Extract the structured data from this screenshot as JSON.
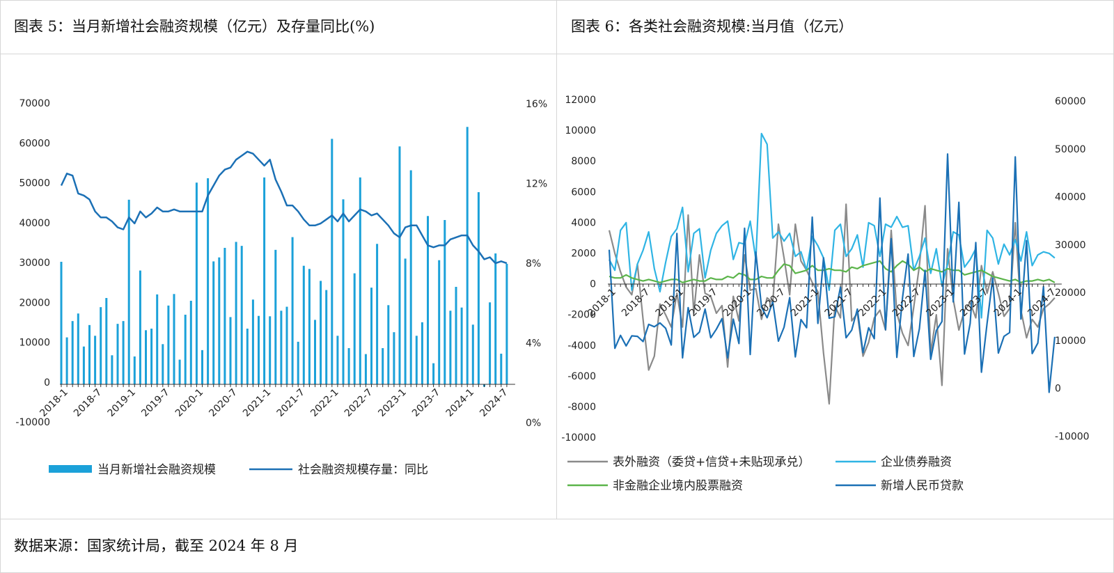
{
  "left_panel": {
    "title": "图表 5：当月新增社会融资规模（亿元）及存量同比(%)"
  },
  "right_panel": {
    "title": "图表 6：各类社会融资规模:当月值（亿元）"
  },
  "footer": {
    "source": "数据来源：国家统计局，截至 2024 年 8 月"
  },
  "chart_data": [
    {
      "type": "bar+line",
      "title": "当月新增社会融资规模（亿元）及存量同比(%)",
      "categories": [
        "2018-1",
        "2018-2",
        "2018-3",
        "2018-4",
        "2018-5",
        "2018-6",
        "2018-7",
        "2018-8",
        "2018-9",
        "2018-10",
        "2018-11",
        "2018-12",
        "2019-1",
        "2019-2",
        "2019-3",
        "2019-4",
        "2019-5",
        "2019-6",
        "2019-7",
        "2019-8",
        "2019-9",
        "2019-10",
        "2019-11",
        "2019-12",
        "2020-1",
        "2020-2",
        "2020-3",
        "2020-4",
        "2020-5",
        "2020-6",
        "2020-7",
        "2020-8",
        "2020-9",
        "2020-10",
        "2020-11",
        "2020-12",
        "2021-1",
        "2021-2",
        "2021-3",
        "2021-4",
        "2021-5",
        "2021-6",
        "2021-7",
        "2021-8",
        "2021-9",
        "2021-10",
        "2021-11",
        "2021-12",
        "2022-1",
        "2022-2",
        "2022-3",
        "2022-4",
        "2022-5",
        "2022-6",
        "2022-7",
        "2022-8",
        "2022-9",
        "2022-10",
        "2022-11",
        "2022-12",
        "2023-1",
        "2023-2",
        "2023-3",
        "2023-4",
        "2023-5",
        "2023-6",
        "2023-7",
        "2023-8",
        "2023-9",
        "2023-10",
        "2023-11",
        "2023-12",
        "2024-1",
        "2024-2",
        "2024-3",
        "2024-4",
        "2024-5",
        "2024-6",
        "2024-7",
        "2024-8"
      ],
      "tick_labels": [
        "2018-1",
        "2018-7",
        "2019-1",
        "2019-7",
        "2020-1",
        "2020-7",
        "2021-1",
        "2021-7",
        "2022-1",
        "2022-7",
        "2023-1",
        "2023-7",
        "2024-1",
        "2024-7"
      ],
      "y_left": {
        "ticks": [
          "70000",
          "60000",
          "50000",
          "40000",
          "30000",
          "20000",
          "10000",
          "0",
          "-10000"
        ],
        "range": [
          -10000,
          70000
        ]
      },
      "y_right": {
        "ticks": [
          "16%",
          "12%",
          "8%",
          "4%",
          "0%"
        ],
        "range": [
          0,
          16
        ]
      },
      "series": [
        {
          "name": "当月新增社会融资规模",
          "kind": "bar",
          "color": "#1ba1d9",
          "values": [
            30800,
            11800,
            15900,
            17800,
            9500,
            14900,
            12200,
            19400,
            21700,
            7300,
            15200,
            15900,
            46400,
            7000,
            28600,
            13600,
            14000,
            22600,
            10100,
            19800,
            22700,
            6200,
            17500,
            21000,
            50700,
            8600,
            51800,
            30900,
            31900,
            34300,
            16900,
            35800,
            34800,
            14000,
            21300,
            17200,
            52000,
            17100,
            33800,
            18500,
            19500,
            37000,
            10700,
            29800,
            29000,
            16200,
            26000,
            23700,
            61700,
            12200,
            46500,
            9100,
            27900,
            52000,
            7600,
            24300,
            35300,
            9100,
            19900,
            13100,
            59800,
            31600,
            53800,
            12200,
            15600,
            42300,
            5300,
            31200,
            41300,
            18500,
            24500,
            19300,
            64700,
            15000,
            48300,
            -600,
            20600,
            32900,
            7700,
            30300
          ]
        },
        {
          "name": "社会融资规模存量：同比",
          "kind": "line",
          "axis": "right",
          "color": "#1b70b5",
          "values": [
            12.0,
            12.6,
            12.5,
            11.6,
            11.5,
            11.3,
            10.7,
            10.4,
            10.4,
            10.2,
            9.9,
            9.8,
            10.4,
            10.1,
            10.7,
            10.4,
            10.6,
            10.9,
            10.7,
            10.7,
            10.8,
            10.7,
            10.7,
            10.7,
            10.7,
            10.7,
            11.5,
            12.0,
            12.5,
            12.8,
            12.9,
            13.3,
            13.5,
            13.7,
            13.6,
            13.3,
            13.0,
            13.3,
            12.3,
            11.7,
            11.0,
            11.0,
            10.7,
            10.3,
            10.0,
            10.0,
            10.1,
            10.3,
            10.5,
            10.2,
            10.6,
            10.2,
            10.5,
            10.8,
            10.7,
            10.5,
            10.6,
            10.3,
            10.0,
            9.6,
            9.4,
            9.9,
            10.0,
            10.0,
            9.5,
            9.0,
            8.9,
            9.0,
            9.0,
            9.3,
            9.4,
            9.5,
            9.5,
            9.0,
            8.7,
            8.3,
            8.4,
            8.1,
            8.2,
            8.1
          ]
        }
      ],
      "legend": [
        "当月新增社会融资规模",
        "社会融资规模存量：同比"
      ],
      "legend_position": "bottom"
    },
    {
      "type": "line",
      "title": "各类社会融资规模:当月值（亿元）",
      "categories_count": 80,
      "tick_labels": [
        "2018-1",
        "2018-7",
        "2019-1",
        "2019-7",
        "2020-1",
        "2020-7",
        "2021-1",
        "2021-7",
        "2022-1",
        "2022-7",
        "2023-1",
        "2023-7",
        "2024-1",
        "2024-7"
      ],
      "y_left": {
        "ticks": [
          "12000",
          "10000",
          "8000",
          "6000",
          "4000",
          "2000",
          "0",
          "-2000",
          "-4000",
          "-6000",
          "-8000",
          "-10000"
        ],
        "range": [
          -10000,
          12000
        ]
      },
      "y_right": {
        "ticks": [
          "60000",
          "50000",
          "40000",
          "30000",
          "20000",
          "10000",
          "0",
          "-10000"
        ],
        "range": [
          -10000,
          60000
        ]
      },
      "series": [
        {
          "name": "表外融资（委贷+信贷+未贴现承兑）",
          "axis": "left",
          "color": "#8a8a8a",
          "values": [
            3500,
            2000,
            800,
            -200,
            -700,
            1300,
            -2300,
            -5600,
            -4700,
            -1300,
            -2000,
            -2800,
            -600,
            -2800,
            4500,
            -1900,
            1900,
            -600,
            -800,
            -1900,
            -1400,
            -5400,
            -800,
            -2400,
            1900,
            -400,
            -300,
            -2300,
            -900,
            -1200,
            3900,
            1700,
            -700,
            3900,
            1500,
            900,
            100,
            -500,
            -4500,
            -7800,
            -1400,
            -2200,
            5200,
            -2400,
            -1900,
            -4700,
            -3800,
            -2200,
            -1700,
            -3000,
            3500,
            -1900,
            -3200,
            -4000,
            -1500,
            1200,
            5100,
            -4500,
            -2000,
            -6600,
            2300,
            -1000,
            -3000,
            -1700,
            -1200,
            -2200,
            1200,
            -600,
            800,
            -600,
            -2100,
            -1600,
            4000,
            -1700,
            -3500,
            -2300,
            -2800,
            -1600,
            -1300,
            -900
          ]
        },
        {
          "name": "企业债券融资",
          "axis": "left",
          "color": "#2fb4e4",
          "values": [
            1600,
            900,
            3500,
            4000,
            -400,
            1300,
            2200,
            3400,
            1000,
            -500,
            1400,
            3100,
            3600,
            5000,
            800,
            3300,
            3600,
            400,
            2200,
            3300,
            3800,
            4100,
            1600,
            2700,
            2600,
            4100,
            1600,
            9800,
            9100,
            3000,
            3400,
            2800,
            3300,
            1800,
            2100,
            900,
            3100,
            2500,
            1700,
            -400,
            3500,
            3900,
            1800,
            2300,
            3200,
            1100,
            4000,
            3800,
            1800,
            3900,
            3700,
            4400,
            3700,
            3800,
            900,
            1800,
            3000,
            700,
            2300,
            -100,
            1300,
            3400,
            3200,
            1100,
            1600,
            2300,
            -2200,
            3500,
            3000,
            1300,
            2600,
            1900,
            2900,
            1500,
            3400,
            1200,
            1900,
            2100,
            2000,
            1700
          ]
        },
        {
          "name": "非金融企业境内股票融资",
          "axis": "left",
          "color": "#5bb44a",
          "values": [
            500,
            400,
            400,
            600,
            400,
            300,
            200,
            300,
            200,
            100,
            200,
            300,
            300,
            100,
            200,
            300,
            200,
            200,
            400,
            300,
            300,
            500,
            400,
            700,
            600,
            300,
            300,
            500,
            400,
            400,
            900,
            1300,
            1200,
            700,
            800,
            900,
            1200,
            900,
            900,
            1000,
            900,
            900,
            800,
            1100,
            1000,
            1200,
            1300,
            1400,
            1500,
            1000,
            800,
            1200,
            1500,
            1300,
            900,
            1100,
            800,
            1000,
            900,
            800,
            1000,
            900,
            900,
            600,
            700,
            800,
            900,
            700,
            500,
            400,
            300,
            200,
            300,
            100,
            200,
            200,
            300,
            200,
            300,
            100
          ]
        },
        {
          "name": "新增人民币贷款",
          "axis": "right",
          "color": "#1b70b5",
          "values": [
            29000,
            8400,
            11100,
            8900,
            11000,
            10900,
            9800,
            13400,
            12900,
            13700,
            12600,
            9100,
            32400,
            6400,
            16900,
            10700,
            11800,
            16600,
            10600,
            12400,
            14600,
            6400,
            14500,
            9400,
            33500,
            7100,
            28500,
            17000,
            14800,
            18100,
            9900,
            12800,
            19000,
            6600,
            14400,
            12700,
            35800,
            13600,
            27300,
            14700,
            15000,
            21200,
            10600,
            12200,
            16600,
            7500,
            12700,
            10400,
            39800,
            12300,
            31300,
            6500,
            18900,
            28100,
            6700,
            12500,
            24700,
            6100,
            12100,
            14000,
            49000,
            18100,
            38900,
            7200,
            13600,
            30500,
            3400,
            13600,
            23100,
            7400,
            10900,
            11700,
            48400,
            14500,
            30900,
            7300,
            9500,
            21300,
            -800,
            10800
          ]
        }
      ],
      "legend": [
        "表外融资（委贷+信贷+未贴现承兑）",
        "企业债券融资",
        "非金融企业境内股票融资",
        "新增人民币贷款"
      ],
      "legend_position": "bottom"
    }
  ]
}
